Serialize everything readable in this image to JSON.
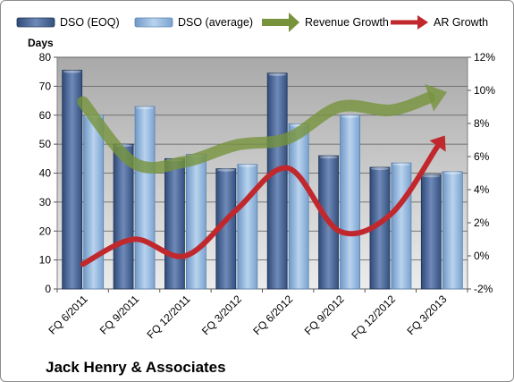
{
  "chart_data": {
    "type": "bar",
    "title": "",
    "company_label": "Jack Henry & Associates",
    "categories": [
      "FQ 6/2011",
      "FQ 9/2011",
      "FQ 12/2011",
      "FQ 3/2012",
      "FQ 6/2012",
      "FQ 9/2012",
      "FQ 12/2012",
      "FQ 3/2013"
    ],
    "y_left": {
      "label": "Days",
      "ylim": [
        0,
        80
      ],
      "ticks": [
        0,
        10,
        20,
        30,
        40,
        50,
        60,
        70,
        80
      ]
    },
    "y_right": {
      "ylim": [
        -2,
        12
      ],
      "ticks": [
        "-2%",
        "0%",
        "2%",
        "4%",
        "6%",
        "8%",
        "10%",
        "12%"
      ],
      "tick_values": [
        -2,
        0,
        2,
        4,
        6,
        8,
        10,
        12
      ]
    },
    "series": [
      {
        "name": "DSO (EOQ)",
        "kind": "bar",
        "axis": "left",
        "color": "#4a6592",
        "values": [
          75.5,
          50,
          45,
          41.5,
          74.5,
          46,
          42,
          39.5
        ]
      },
      {
        "name": "DSO (average)",
        "kind": "bar",
        "axis": "left",
        "color": "#8eb4dd",
        "values": [
          60,
          63,
          46.5,
          43,
          57,
          60,
          43.5,
          40.5
        ]
      },
      {
        "name": "Revenue Growth",
        "kind": "line",
        "axis": "right",
        "color": "#77933c",
        "values": [
          9.3,
          5.6,
          5.7,
          6.7,
          7.1,
          9.0,
          8.8,
          9.8
        ]
      },
      {
        "name": "AR Growth",
        "kind": "line",
        "axis": "right",
        "color": "#c0282d",
        "values": [
          -0.5,
          1.0,
          0.0,
          2.8,
          5.3,
          1.5,
          2.5,
          7.0
        ]
      }
    ],
    "grid": true,
    "legend": "top",
    "plot_background": "#c0c0c0"
  }
}
